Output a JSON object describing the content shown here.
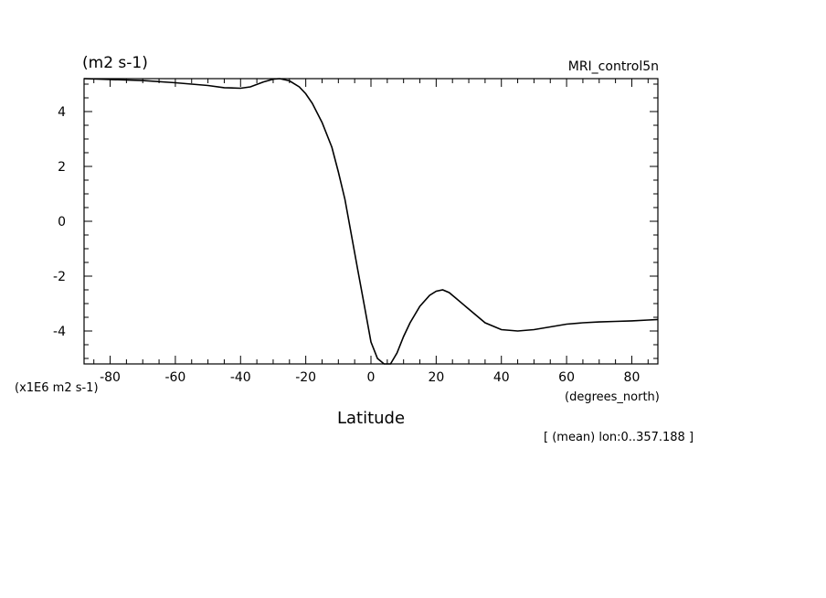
{
  "chart_data": {
    "type": "line",
    "units_label": "(m2 s-1)",
    "dataset_label": "MRI_control5n",
    "scale_label": "(x1E6 m2 s-1)",
    "xlabel": "Latitude",
    "x_units_label": "(degrees_north)",
    "footnote": "[ (mean) lon:0..357.188 ]",
    "xlim": [
      -88,
      88
    ],
    "ylim": [
      -5.2,
      5.2
    ],
    "x_ticks": [
      -80,
      -60,
      -40,
      -20,
      0,
      20,
      40,
      60,
      80
    ],
    "x_tick_labels": [
      "-80",
      "-60",
      "-40",
      "-20",
      "0",
      "20",
      "40",
      "60",
      "80"
    ],
    "y_ticks": [
      4,
      2,
      0,
      -2,
      -4
    ],
    "y_tick_labels": [
      "4",
      "2",
      "0",
      "-2",
      "-4"
    ],
    "series": [
      {
        "x": [
          -88,
          -80,
          -70,
          -60,
          -50,
          -45,
          -40,
          -37,
          -33,
          -30,
          -28,
          -25,
          -22,
          -20,
          -18,
          -15,
          -12,
          -10,
          -8,
          -6,
          -4,
          -2,
          0,
          2,
          4,
          5,
          6,
          8,
          10,
          12,
          15,
          18,
          20,
          22,
          24,
          26,
          30,
          35,
          40,
          45,
          50,
          55,
          60,
          65,
          70,
          75,
          80,
          85,
          88
        ],
        "y": [
          5.2,
          5.17,
          5.13,
          5.05,
          4.95,
          4.87,
          4.85,
          4.9,
          5.08,
          5.18,
          5.2,
          5.12,
          4.9,
          4.65,
          4.3,
          3.6,
          2.7,
          1.8,
          0.8,
          -0.5,
          -1.8,
          -3.1,
          -4.4,
          -5.0,
          -5.25,
          -5.3,
          -5.2,
          -4.8,
          -4.2,
          -3.7,
          -3.1,
          -2.7,
          -2.55,
          -2.5,
          -2.6,
          -2.8,
          -3.2,
          -3.7,
          -3.95,
          -4.0,
          -3.95,
          -3.85,
          -3.75,
          -3.7,
          -3.67,
          -3.65,
          -3.63,
          -3.6,
          -3.58
        ]
      }
    ]
  }
}
